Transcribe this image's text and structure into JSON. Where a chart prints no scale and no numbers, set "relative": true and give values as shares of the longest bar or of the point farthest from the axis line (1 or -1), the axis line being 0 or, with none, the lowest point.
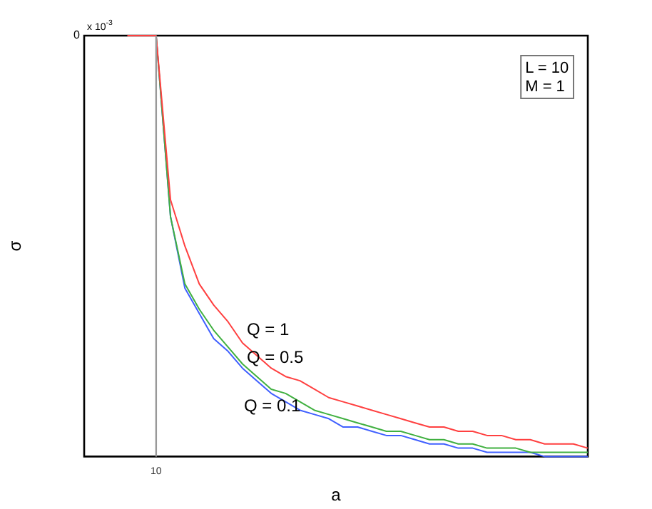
{
  "chart_data": {
    "type": "line",
    "relative": true,
    "xlabel": "a",
    "ylabel": "σ",
    "grid": false,
    "legend": false,
    "marker": "none",
    "line_style": "solid",
    "categories": [
      null,
      null,
      null,
      null,
      null,
      null,
      null,
      null,
      null,
      null,
      null,
      null,
      null,
      null,
      null,
      null,
      null,
      null,
      null,
      null,
      null,
      null,
      null,
      null,
      null,
      null,
      null,
      null,
      null,
      null,
      null,
      null,
      null,
      null,
      null,
      null
    ],
    "series": [
      {
        "name": "Q = 1",
        "color": "#ff4040",
        "values": [
          null,
          null,
          null,
          0,
          0,
          0,
          -0.39,
          -0.5,
          -0.59,
          -0.64,
          -0.68,
          -0.73,
          -0.76,
          -0.79,
          -0.81,
          -0.82,
          -0.84,
          -0.86,
          -0.87,
          -0.88,
          -0.89,
          -0.9,
          -0.91,
          -0.92,
          -0.93,
          -0.93,
          -0.94,
          -0.94,
          -0.95,
          -0.95,
          -0.96,
          -0.96,
          -0.97,
          -0.97,
          -0.97,
          -0.98
        ]
      },
      {
        "name": "Q = 0.5",
        "color": "#40b040",
        "values": [
          null,
          null,
          null,
          null,
          null,
          0,
          -0.43,
          -0.59,
          -0.65,
          -0.7,
          -0.74,
          -0.78,
          -0.81,
          -0.84,
          -0.85,
          -0.87,
          -0.89,
          -0.9,
          -0.91,
          -0.92,
          -0.93,
          -0.94,
          -0.94,
          -0.95,
          -0.96,
          -0.96,
          -0.97,
          -0.97,
          -0.98,
          -0.98,
          -0.98,
          -0.99,
          -0.99,
          -0.99,
          -0.99,
          -0.99
        ]
      },
      {
        "name": "Q = 0.1",
        "color": "#4060ff",
        "values": [
          null,
          null,
          null,
          null,
          null,
          0,
          -0.43,
          -0.6,
          -0.66,
          -0.72,
          -0.75,
          -0.79,
          -0.82,
          -0.85,
          -0.87,
          -0.89,
          -0.9,
          -0.91,
          -0.93,
          -0.93,
          -0.94,
          -0.95,
          -0.95,
          -0.96,
          -0.97,
          -0.97,
          -0.98,
          -0.98,
          -0.99,
          -0.99,
          -0.99,
          -0.99,
          -1,
          -1,
          -1,
          -1
        ]
      }
    ],
    "ref_lines": [
      {
        "axis": "x",
        "label": "10",
        "color": "#999999"
      }
    ],
    "annotations": [
      "0",
      "x 10$^{-3}$",
      "L = 10\nM = 1"
    ]
  }
}
